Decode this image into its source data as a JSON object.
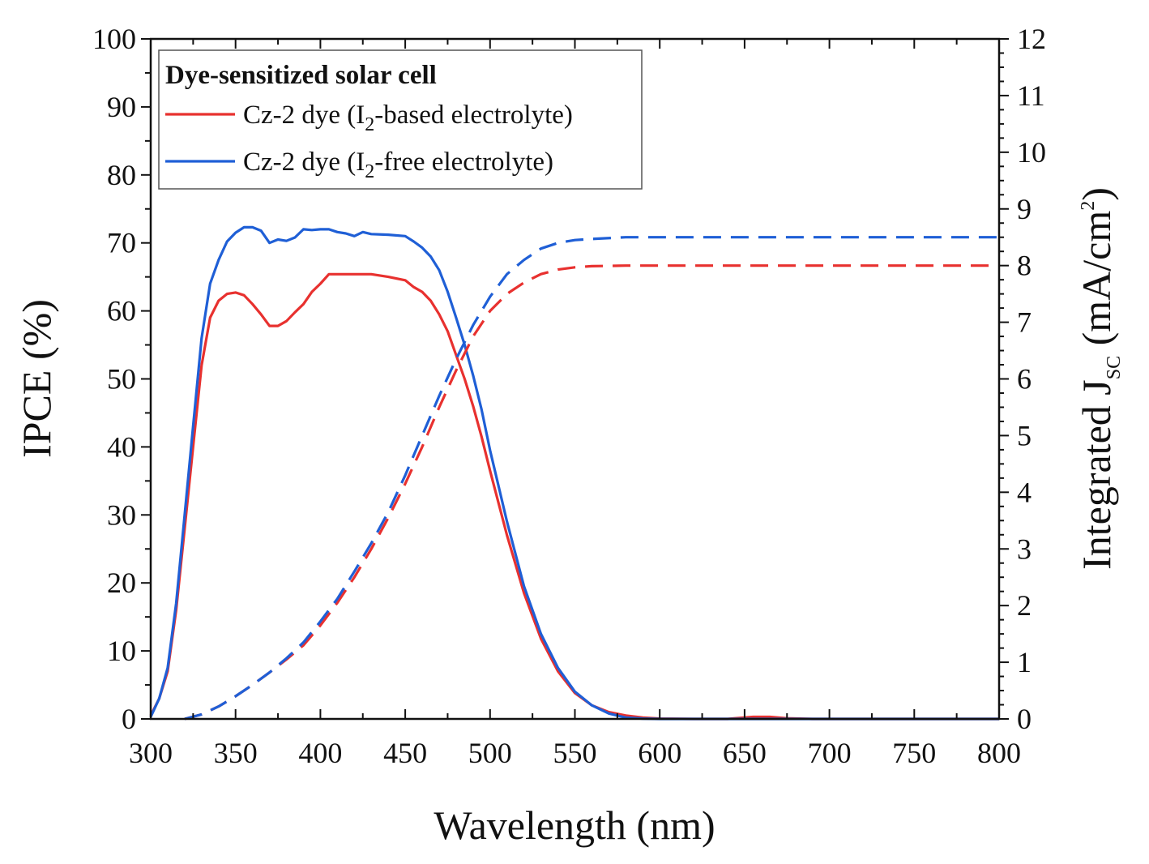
{
  "chart_data": {
    "type": "line",
    "title": "",
    "xlabel": "Wavelength (nm)",
    "ylabel": "IPCE (%)",
    "y2label": {
      "main": "Integrated J",
      "sub": "SC",
      "unit_open": " (mA/cm",
      "sup": "2",
      "unit_close": ")"
    },
    "xlim": [
      300,
      800
    ],
    "ylim": [
      0,
      100
    ],
    "y2lim": [
      0,
      12
    ],
    "xticks": [
      300,
      350,
      400,
      450,
      500,
      550,
      600,
      650,
      700,
      750,
      800
    ],
    "yticks": [
      0,
      10,
      20,
      30,
      40,
      50,
      60,
      70,
      80,
      90,
      100
    ],
    "y2ticks": [
      0,
      1,
      2,
      3,
      4,
      5,
      6,
      7,
      8,
      9,
      10,
      11,
      12
    ],
    "grid": false,
    "legend": {
      "position": "top-left",
      "title": "Dye-sensitized solar cell",
      "entries": [
        {
          "pre": "Cz-2 dye (I",
          "sub": "2",
          "post": "-based electrolyte)",
          "color": "#e8312f"
        },
        {
          "pre": "Cz-2 dye (I",
          "sub": "2",
          "post": "-free electrolyte)",
          "color": "#1f5fd6"
        }
      ]
    },
    "series": [
      {
        "name": "Cz-2 dye (I2-based electrolyte) IPCE",
        "axis": "left",
        "style": "solid",
        "color": "#e8312f",
        "x": [
          300,
          305,
          310,
          315,
          320,
          325,
          330,
          335,
          340,
          345,
          350,
          355,
          360,
          365,
          370,
          375,
          380,
          385,
          390,
          395,
          400,
          405,
          410,
          420,
          430,
          440,
          450,
          455,
          460,
          465,
          470,
          475,
          480,
          485,
          490,
          495,
          500,
          510,
          520,
          530,
          540,
          550,
          560,
          570,
          580,
          590,
          600,
          620,
          640,
          655,
          665,
          675,
          690,
          720,
          760,
          800
        ],
        "y": [
          0.5,
          3,
          7,
          16,
          28,
          40,
          52,
          59,
          61.5,
          62.5,
          62.7,
          62.3,
          61,
          59.5,
          57.8,
          57.8,
          58.5,
          59.8,
          61,
          62.8,
          64,
          65.4,
          65.4,
          65.4,
          65.4,
          65,
          64.5,
          63.5,
          62.8,
          61.5,
          59.5,
          57,
          53.5,
          50,
          46,
          41.5,
          36.5,
          27,
          18.5,
          11.8,
          7,
          3.8,
          2,
          1,
          0.5,
          0.2,
          0.05,
          0,
          0,
          0.3,
          0.3,
          0.1,
          0,
          0,
          0,
          0
        ]
      },
      {
        "name": "Cz-2 dye (I2-free electrolyte) IPCE",
        "axis": "left",
        "style": "solid",
        "color": "#1f5fd6",
        "x": [
          300,
          305,
          310,
          315,
          320,
          325,
          330,
          335,
          340,
          345,
          350,
          355,
          360,
          365,
          370,
          375,
          380,
          385,
          390,
          395,
          400,
          405,
          410,
          415,
          420,
          425,
          430,
          440,
          450,
          455,
          460,
          465,
          470,
          475,
          480,
          485,
          490,
          495,
          500,
          510,
          520,
          530,
          540,
          550,
          560,
          570,
          580,
          590,
          600,
          650,
          700,
          800
        ],
        "y": [
          0.3,
          3,
          7.5,
          17,
          30,
          43,
          56,
          64,
          67.5,
          70.2,
          71.5,
          72.3,
          72.3,
          71.8,
          70,
          70.5,
          70.3,
          70.8,
          72,
          71.9,
          72,
          72,
          71.6,
          71.4,
          71,
          71.6,
          71.3,
          71.2,
          71,
          70.2,
          69.3,
          68,
          66,
          62.8,
          59,
          55,
          50.5,
          45.5,
          39.5,
          29,
          19.5,
          12.5,
          7.5,
          4,
          2,
          0.8,
          0.2,
          0.05,
          0,
          0,
          0,
          0
        ]
      },
      {
        "name": "Cz-2 dye (I2-based electrolyte) integrated Jsc",
        "axis": "right",
        "style": "dashed",
        "color": "#e8312f",
        "x": [
          320,
          330,
          340,
          350,
          360,
          370,
          380,
          390,
          400,
          410,
          420,
          430,
          440,
          450,
          460,
          470,
          480,
          490,
          500,
          510,
          520,
          530,
          540,
          550,
          560,
          580,
          600,
          650,
          700,
          750,
          800
        ],
        "y": [
          0,
          0.08,
          0.22,
          0.4,
          0.6,
          0.82,
          1.05,
          1.3,
          1.65,
          2.05,
          2.5,
          3.0,
          3.55,
          4.15,
          4.8,
          5.5,
          6.15,
          6.75,
          7.2,
          7.5,
          7.7,
          7.85,
          7.93,
          7.97,
          7.99,
          8.0,
          8.0,
          8.0,
          8.0,
          8.0,
          8.0
        ]
      },
      {
        "name": "Cz-2 dye (I2-free electrolyte) integrated Jsc",
        "axis": "right",
        "style": "dashed",
        "color": "#1f5fd6",
        "x": [
          320,
          330,
          340,
          350,
          360,
          370,
          380,
          390,
          400,
          410,
          420,
          430,
          440,
          450,
          460,
          470,
          480,
          490,
          500,
          510,
          520,
          530,
          540,
          550,
          560,
          580,
          600,
          650,
          700,
          750,
          800
        ],
        "y": [
          0,
          0.08,
          0.22,
          0.4,
          0.6,
          0.82,
          1.07,
          1.35,
          1.72,
          2.12,
          2.6,
          3.1,
          3.65,
          4.3,
          5.0,
          5.7,
          6.35,
          6.95,
          7.45,
          7.85,
          8.1,
          8.3,
          8.4,
          8.45,
          8.47,
          8.5,
          8.5,
          8.5,
          8.5,
          8.5,
          8.5
        ]
      }
    ]
  }
}
